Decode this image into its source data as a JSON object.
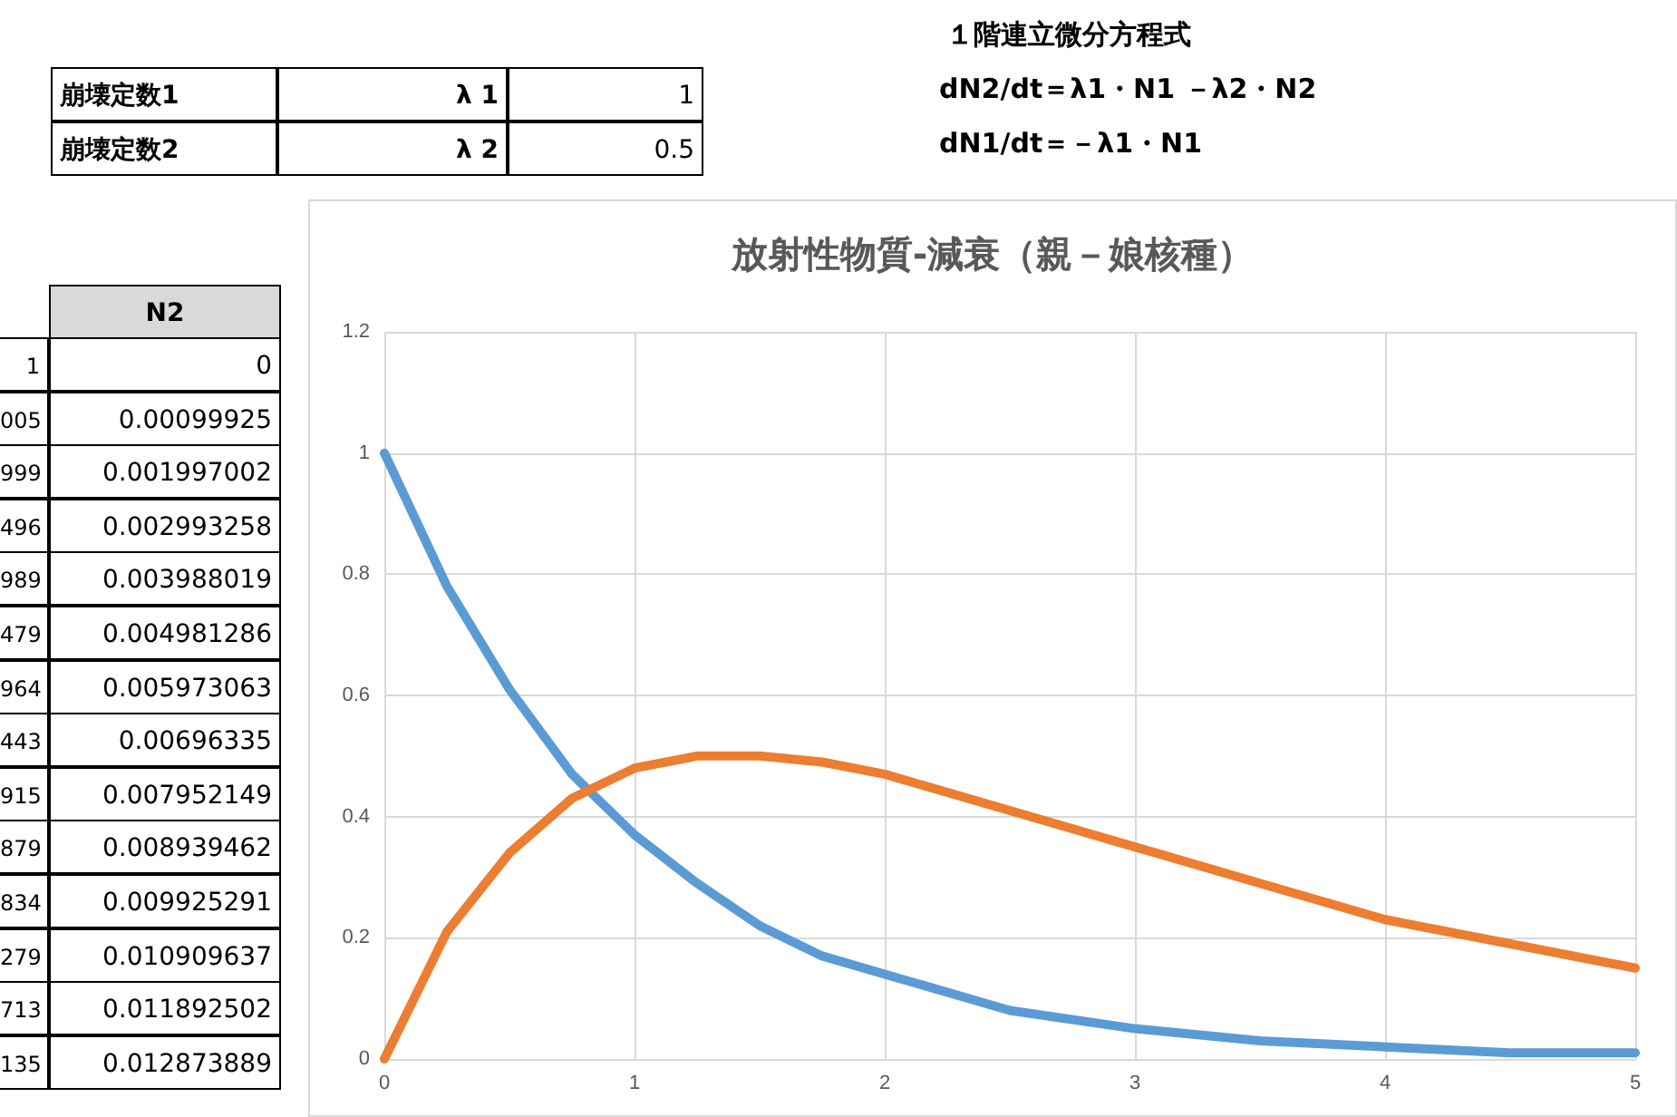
{
  "chart_data": {
    "type": "line",
    "title": "放射性物質-減衰（親－娘核種）",
    "annotations": [
      "崩壊定数1",
      "λ 1",
      "1",
      "崩壊定数2",
      "λ 2",
      "0.5",
      "１階連立微分方程式",
      "dN2/dt＝λ1・N1 －λ2・N2",
      "dN1/dt＝－λ1・N1",
      "N2",
      "1",
      "0",
      "005",
      "0.00099925",
      "999",
      "0.001997002",
      "496",
      "0.002993258",
      "989",
      "0.003988019",
      "479",
      "0.004981286",
      "964",
      "0.005973063",
      "443",
      "0.00696335",
      "915",
      "0.007952149",
      "879",
      "0.008939462",
      "834",
      "0.009925291",
      "279",
      "0.010909637",
      "713",
      "0.011892502",
      "135",
      "0.012873889"
    ],
    "x": [
      0,
      0.25,
      0.5,
      0.75,
      1,
      1.25,
      1.5,
      1.75,
      2,
      2.5,
      3,
      3.5,
      4,
      4.5,
      5
    ],
    "series": [
      {
        "color": "#5b9bd5",
        "values": [
          1,
          0.78,
          0.61,
          0.47,
          0.37,
          0.29,
          0.22,
          0.17,
          0.14,
          0.08,
          0.05,
          0.03,
          0.02,
          0.01,
          0.01
        ]
      },
      {
        "color": "#ed7d31",
        "values": [
          0,
          0.21,
          0.34,
          0.43,
          0.48,
          0.5,
          0.5,
          0.49,
          0.47,
          0.41,
          0.35,
          0.29,
          0.23,
          0.19,
          0.15
        ]
      }
    ],
    "xlim": [
      0,
      5
    ],
    "xticks": [
      0,
      1,
      2,
      3,
      4,
      5
    ],
    "ylim": [
      0,
      1.2
    ],
    "yticks": [
      0,
      0.2,
      0.4,
      0.6,
      0.8,
      1,
      1.2
    ],
    "grid": true,
    "marker": "none",
    "line_style": "solid"
  }
}
